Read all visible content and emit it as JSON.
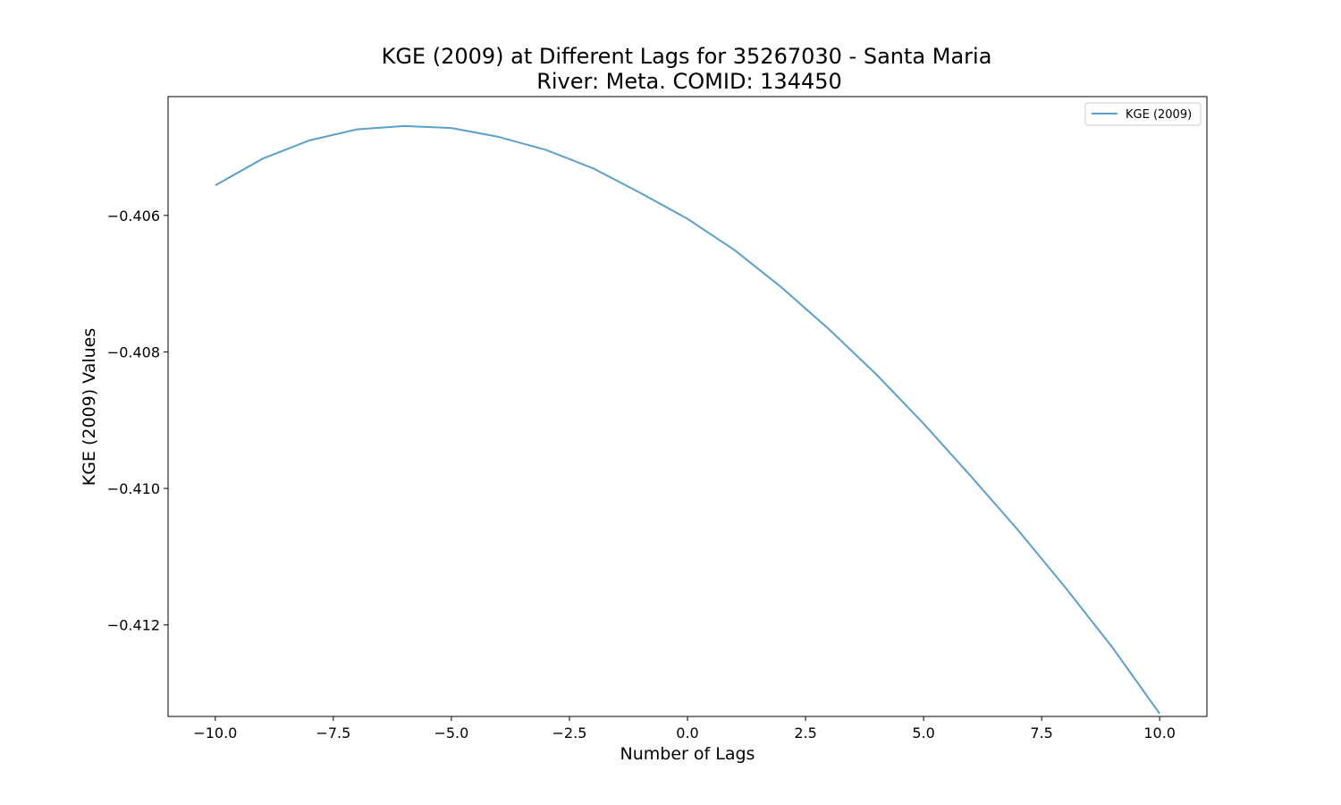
{
  "chart_data": {
    "type": "line",
    "title_line1": "KGE (2009) at Different Lags for 35267030 - Santa Maria",
    "title_line2": "River: Meta. COMID: 134450",
    "xlabel": "Number of Lags",
    "ylabel": "KGE (2009) Values",
    "xlim": [
      -11.0,
      11.0
    ],
    "ylim": [
      -0.41334,
      -0.40426
    ],
    "x_ticks": [
      -10.0,
      -7.5,
      -5.0,
      -2.5,
      0.0,
      2.5,
      5.0,
      7.5,
      10.0
    ],
    "x_tick_labels": [
      "−10.0",
      "−7.5",
      "−5.0",
      "−2.5",
      "0.0",
      "2.5",
      "5.0",
      "7.5",
      "10.0"
    ],
    "y_ticks": [
      -0.406,
      -0.408,
      -0.41,
      -0.412
    ],
    "y_tick_labels": [
      "−0.406",
      "−0.408",
      "−0.410",
      "−0.412"
    ],
    "legend_position": "upper-right",
    "grid": false,
    "series": [
      {
        "name": "KGE (2009)",
        "color": "#5b9fcd",
        "x": [
          -10,
          -9,
          -8,
          -7,
          -6,
          -5,
          -4,
          -3,
          -2,
          -1,
          0,
          1,
          2,
          3,
          4,
          5,
          6,
          7,
          8,
          9,
          10
        ],
        "y": [
          -0.40556,
          -0.40517,
          -0.4049,
          -0.40474,
          -0.40469,
          -0.40472,
          -0.40485,
          -0.40504,
          -0.40531,
          -0.40567,
          -0.40605,
          -0.40651,
          -0.40706,
          -0.40767,
          -0.40833,
          -0.40905,
          -0.40982,
          -0.41061,
          -0.41145,
          -0.41233,
          -0.4133
        ]
      }
    ]
  }
}
